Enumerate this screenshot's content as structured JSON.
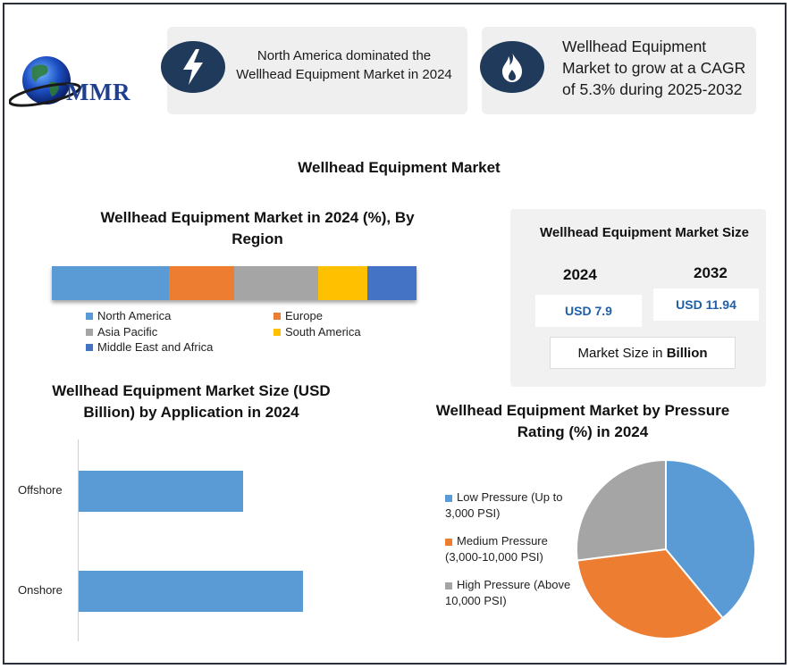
{
  "logo": {
    "text": "MMR"
  },
  "cards": [
    {
      "icon": "lightning-bolt-icon",
      "text": "North America dominated the Wellhead Equipment Market in 2024"
    },
    {
      "icon": "flame-icon",
      "text": "Wellhead Equipment Market to grow at a CAGR of 5.3% during 2025-2032"
    }
  ],
  "main_title": "Wellhead Equipment Market",
  "market_size": {
    "title": "Wellhead Equipment Market Size",
    "year1": "2024",
    "year2": "2032",
    "value1": "USD 7.9",
    "value2": "USD 11.94",
    "unit_prefix": "Market Size in ",
    "unit_bold": "Billion"
  },
  "colors": {
    "blue": "#5b9bd5",
    "orange": "#ed7d31",
    "gray": "#a5a5a5",
    "yellow": "#ffc000",
    "dark_blue": "#4472c4",
    "navy": "#1f3a5a"
  },
  "chart_data": [
    {
      "type": "bar",
      "orientation": "horizontal-stacked",
      "title": "Wellhead Equipment Market in 2024 (%), By Region",
      "series": [
        {
          "name": "North America",
          "values": [
            32
          ]
        },
        {
          "name": "Europe",
          "values": [
            18
          ]
        },
        {
          "name": "Asia Pacific",
          "values": [
            23
          ]
        },
        {
          "name": "South America",
          "values": [
            13.5
          ]
        },
        {
          "name": "Middle East and Africa",
          "values": [
            13.5
          ]
        }
      ],
      "legend": "bottom"
    },
    {
      "type": "bar",
      "orientation": "horizontal",
      "title": "Wellhead Equipment Market Size (USD Billion) by Application in 2024",
      "categories": [
        "Offshore",
        "Onshore"
      ],
      "values": [
        3.3,
        4.5
      ],
      "xlim": [
        0,
        6
      ]
    },
    {
      "type": "pie",
      "title": "Wellhead Equipment Market by Pressure Rating (%) in 2024",
      "labels": [
        "Low Pressure (Up to 3,000 PSI)",
        "Medium Pressure (3,000-10,000 PSI)",
        "High Pressure (Above 10,000 PSI)"
      ],
      "values": [
        39,
        34,
        27
      ],
      "legend": "left"
    }
  ]
}
